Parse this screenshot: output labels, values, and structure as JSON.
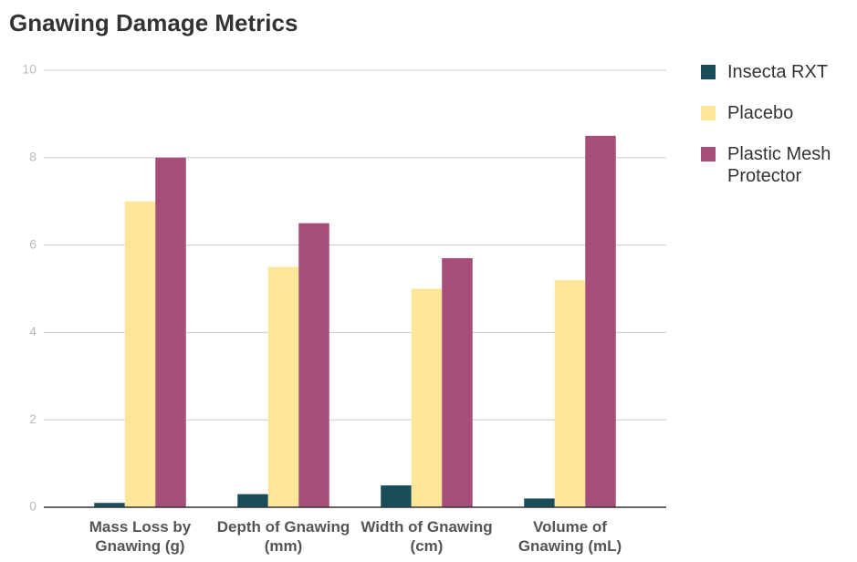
{
  "chart_data": {
    "type": "bar",
    "title": "Gnawing Damage Metrics",
    "categories": [
      "Mass Loss by Gnawing (g)",
      "Depth of Gnawing (mm)",
      "Width of Gnawing (cm)",
      "Volume of Gnawing (mL)"
    ],
    "series": [
      {
        "name": "Insecta RXT",
        "color": "#1a4d5a",
        "values": [
          0.1,
          0.3,
          0.5,
          0.2
        ]
      },
      {
        "name": "Placebo",
        "color": "#fde59a",
        "values": [
          7,
          5.5,
          5,
          5.2
        ]
      },
      {
        "name": "Plastic Mesh Protector",
        "color": "#a64d79",
        "values": [
          8,
          6.5,
          5.7,
          8.5
        ]
      }
    ],
    "ylim": [
      0,
      10
    ],
    "yticks": [
      0,
      2,
      4,
      6,
      8,
      10
    ],
    "grid": true,
    "legend": "right"
  }
}
